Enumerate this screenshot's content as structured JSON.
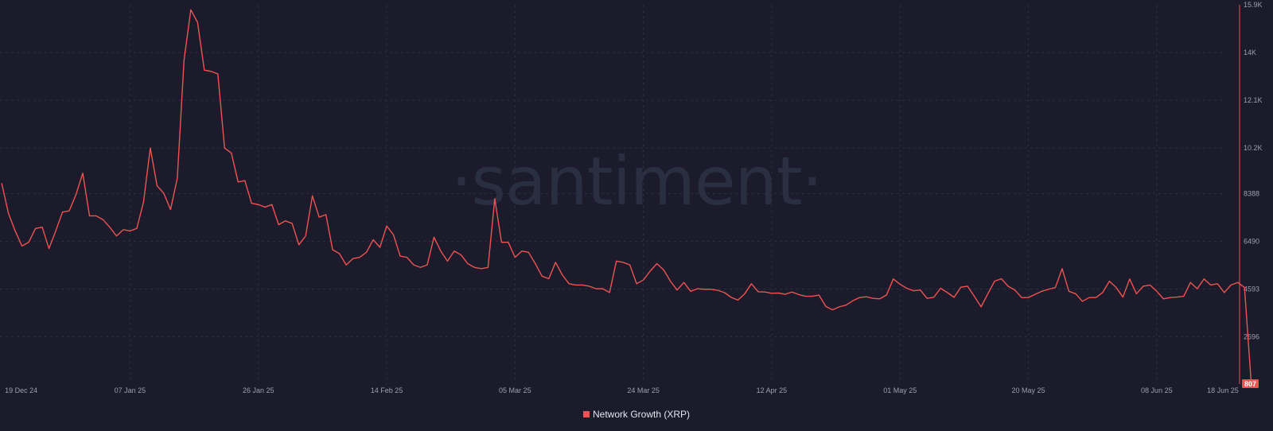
{
  "watermark": "·santiment·",
  "legend": {
    "series_name": "Network Growth (XRP)",
    "color": "#ef5350"
  },
  "colors": {
    "background": "#1b1b2c",
    "line": "#ef5350",
    "grid": "#2b2f42",
    "tick_text": "#9b9fb0"
  },
  "chart_data": {
    "type": "line",
    "ylim": [
      807,
      15900
    ],
    "grid": true,
    "legend_position": "bottom-center",
    "y_ticks": [
      {
        "value": 15900,
        "label": "15.9K"
      },
      {
        "value": 14000,
        "label": "14K"
      },
      {
        "value": 12100,
        "label": "12.1K"
      },
      {
        "value": 10200,
        "label": "10.2K"
      },
      {
        "value": 8388,
        "label": "8388"
      },
      {
        "value": 6490,
        "label": "6490"
      },
      {
        "value": 4593,
        "label": "4593"
      },
      {
        "value": 2696,
        "label": "2696"
      }
    ],
    "x_ticks": [
      {
        "date": "2024-12-19",
        "label": "19 Dec 24"
      },
      {
        "date": "2025-01-07",
        "label": "07 Jan 25"
      },
      {
        "date": "2025-01-26",
        "label": "26 Jan 25"
      },
      {
        "date": "2025-02-14",
        "label": "14 Feb 25"
      },
      {
        "date": "2025-03-05",
        "label": "05 Mar 25"
      },
      {
        "date": "2025-03-24",
        "label": "24 Mar 25"
      },
      {
        "date": "2025-04-12",
        "label": "12 Apr 25"
      },
      {
        "date": "2025-05-01",
        "label": "01 May 25"
      },
      {
        "date": "2025-05-20",
        "label": "20 May 25"
      },
      {
        "date": "2025-06-08",
        "label": "08 Jun 25"
      },
      {
        "date": "2025-06-18",
        "label": "18 Jun 25"
      }
    ],
    "last_value_label": "807",
    "series": [
      {
        "name": "Network Growth (XRP)",
        "start_date": "2024-12-19",
        "step_days": 1,
        "values": [
          8800,
          7600,
          6900,
          6300,
          6450,
          7000,
          7050,
          6200,
          6900,
          7650,
          7700,
          8350,
          9200,
          7500,
          7500,
          7350,
          7050,
          6700,
          6950,
          6900,
          7000,
          8050,
          10200,
          8700,
          8400,
          7750,
          9000,
          13700,
          15700,
          15200,
          13300,
          13250,
          13150,
          10200,
          10000,
          8850,
          8900,
          8000,
          7950,
          7850,
          7950,
          7150,
          7300,
          7200,
          6350,
          6700,
          8300,
          7450,
          7550,
          6150,
          6000,
          5550,
          5800,
          5850,
          6050,
          6550,
          6250,
          7100,
          6750,
          5900,
          5850,
          5550,
          5450,
          5550,
          6650,
          6100,
          5700,
          6100,
          5950,
          5600,
          5450,
          5400,
          5450,
          8180,
          6450,
          6450,
          5850,
          6100,
          6050,
          5600,
          5100,
          5000,
          5650,
          5150,
          4800,
          4750,
          4750,
          4700,
          4600,
          4600,
          4450,
          5700,
          5650,
          5550,
          4800,
          4950,
          5300,
          5600,
          5350,
          4900,
          4550,
          4850,
          4500,
          4600,
          4580,
          4580,
          4540,
          4450,
          4260,
          4150,
          4400,
          4800,
          4480,
          4470,
          4420,
          4430,
          4380,
          4470,
          4370,
          4300,
          4300,
          4350,
          3900,
          3760,
          3880,
          3950,
          4120,
          4250,
          4280,
          4220,
          4200,
          4350,
          4990,
          4780,
          4620,
          4520,
          4550,
          4220,
          4260,
          4620,
          4450,
          4260,
          4660,
          4700,
          4300,
          3880,
          4400,
          4900,
          5000,
          4700,
          4550,
          4250,
          4250,
          4380,
          4500,
          4580,
          4650,
          5400,
          4500,
          4400,
          4100,
          4250,
          4250,
          4450,
          4900,
          4650,
          4270,
          4990,
          4400,
          4700,
          4750,
          4500,
          4200,
          4250,
          4270,
          4300,
          4850,
          4600,
          4990,
          4750,
          4800,
          4450,
          4750,
          4850,
          4650,
          807
        ]
      }
    ]
  }
}
